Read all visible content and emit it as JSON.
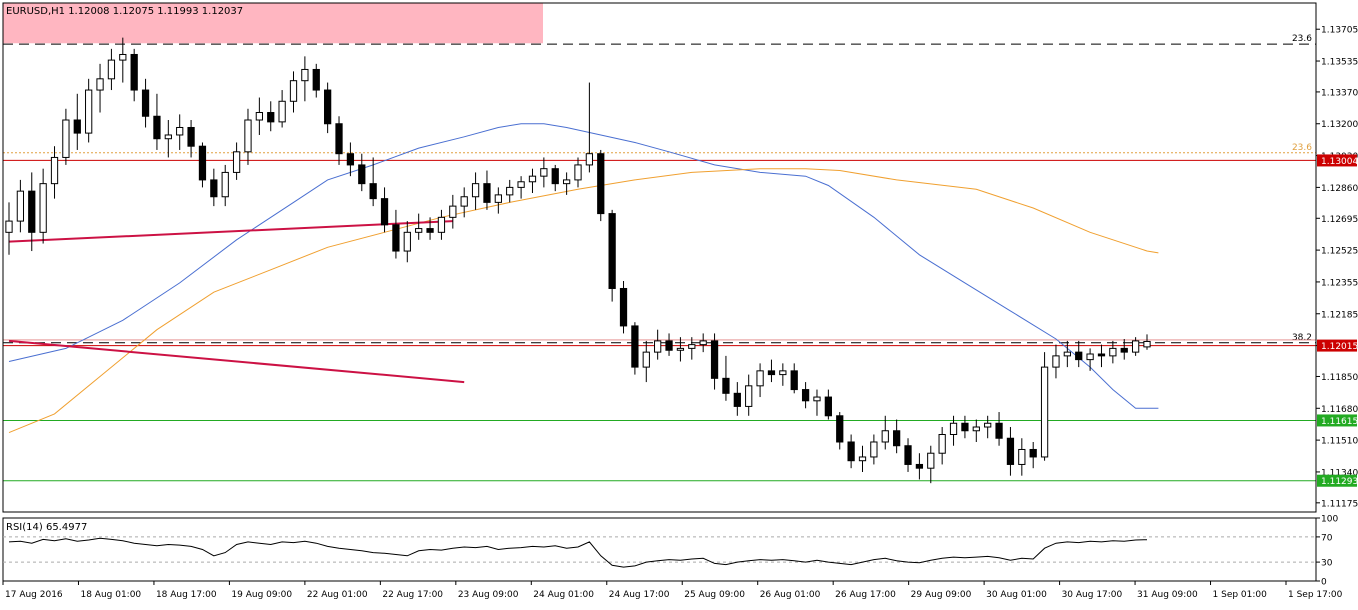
{
  "chart_data": {
    "type": "candlestick",
    "symbol_header": "EURUSD,H1  1.12008 1.12075 1.11993 1.12037",
    "timeframe": "H1",
    "ohlc_last": {
      "open": 1.12008,
      "high": 1.12075,
      "low": 1.11993,
      "close": 1.12037
    },
    "price_axis_ticks": [
      "1.13705",
      "1.13535",
      "1.13370",
      "1.13200",
      "1.13030",
      "1.12860",
      "1.12695",
      "1.12525",
      "1.12355",
      "1.12185",
      "1.12015",
      "1.11850",
      "1.11680",
      "1.11510",
      "1.11340",
      "1.11175"
    ],
    "price_range": [
      1.11126,
      1.13845
    ],
    "time_axis_labels": [
      "17 Aug 2016",
      "18 Aug 01:00",
      "18 Aug 17:00",
      "19 Aug 09:00",
      "22 Aug 01:00",
      "22 Aug 17:00",
      "23 Aug 09:00",
      "24 Aug 01:00",
      "24 Aug 17:00",
      "25 Aug 09:00",
      "26 Aug 01:00",
      "26 Aug 17:00",
      "29 Aug 09:00",
      "30 Aug 01:00",
      "30 Aug 17:00",
      "31 Aug 09:00",
      "1 Sep 01:00",
      "1 Sep 17:00"
    ],
    "horizontal_levels": [
      {
        "label": "1.13004",
        "price": 1.13004,
        "color": "#cc0000"
      },
      {
        "label": "1.12015",
        "price": 1.12015,
        "color": "#cc0000"
      },
      {
        "label": "1.11615",
        "price": 1.11615,
        "color": "#22aa22"
      },
      {
        "label": "1.11293",
        "price": 1.11293,
        "color": "#22aa22"
      }
    ],
    "fibo_levels": [
      {
        "label": "23.6",
        "price": 1.13625
      },
      {
        "label": "23.6",
        "price": 1.13045
      },
      {
        "label": "38.2",
        "price": 1.1203
      }
    ],
    "highlight_zone": {
      "price_top": 1.13845,
      "price_bottom": 1.1363,
      "color": "#ffb6c1"
    },
    "moving_averages": [
      {
        "color": "#4a6fd1",
        "points": [
          [
            0,
            1.1193
          ],
          [
            5,
            1.12
          ],
          [
            10,
            1.1215
          ],
          [
            15,
            1.1235
          ],
          [
            20,
            1.1258
          ],
          [
            25,
            1.1278
          ],
          [
            28,
            1.129
          ],
          [
            32,
            1.1298
          ],
          [
            36,
            1.1307
          ],
          [
            40,
            1.1313
          ],
          [
            43,
            1.1318
          ],
          [
            45,
            1.132
          ],
          [
            47,
            1.132
          ],
          [
            49,
            1.1318
          ],
          [
            52,
            1.1314
          ],
          [
            55,
            1.131
          ],
          [
            58,
            1.1305
          ],
          [
            62,
            1.1298
          ],
          [
            66,
            1.1294
          ],
          [
            70,
            1.1292
          ],
          [
            72,
            1.1287
          ],
          [
            76,
            1.127
          ],
          [
            80,
            1.125
          ],
          [
            84,
            1.1235
          ],
          [
            88,
            1.122
          ],
          [
            92,
            1.1205
          ],
          [
            95,
            1.119
          ],
          [
            97,
            1.1178
          ],
          [
            99,
            1.1168
          ],
          [
            101,
            1.1168
          ]
        ]
      },
      {
        "color": "#f0a030",
        "points": [
          [
            0,
            1.1155
          ],
          [
            4,
            1.1165
          ],
          [
            8,
            1.1185
          ],
          [
            13,
            1.121
          ],
          [
            18,
            1.123
          ],
          [
            23,
            1.1242
          ],
          [
            28,
            1.1254
          ],
          [
            33,
            1.1262
          ],
          [
            38,
            1.127
          ],
          [
            44,
            1.1278
          ],
          [
            50,
            1.1285
          ],
          [
            55,
            1.129
          ],
          [
            60,
            1.1294
          ],
          [
            66,
            1.1296
          ],
          [
            70,
            1.1296
          ],
          [
            73,
            1.1295
          ],
          [
            78,
            1.129
          ],
          [
            85,
            1.1285
          ],
          [
            90,
            1.1275
          ],
          [
            95,
            1.1262
          ],
          [
            100,
            1.1252
          ],
          [
            101,
            1.1251
          ]
        ]
      }
    ],
    "trendlines": [
      {
        "color": "#cc1144",
        "from": [
          0,
          1.1257
        ],
        "to": [
          39,
          1.1268
        ]
      },
      {
        "color": "#cc1144",
        "from": [
          0,
          1.1204
        ],
        "to": [
          40,
          1.1182
        ]
      }
    ],
    "candles": [
      [
        1.1262,
        1.1278,
        1.125,
        1.1268
      ],
      [
        1.1268,
        1.129,
        1.1262,
        1.1284
      ],
      [
        1.1284,
        1.1294,
        1.1252,
        1.1262
      ],
      [
        1.1262,
        1.1296,
        1.1256,
        1.1288
      ],
      [
        1.1288,
        1.1308,
        1.128,
        1.1302
      ],
      [
        1.1302,
        1.1328,
        1.1298,
        1.1322
      ],
      [
        1.1322,
        1.1336,
        1.1306,
        1.1315
      ],
      [
        1.1315,
        1.1344,
        1.131,
        1.1338
      ],
      [
        1.1338,
        1.1352,
        1.1326,
        1.1344
      ],
      [
        1.1344,
        1.136,
        1.1338,
        1.1354
      ],
      [
        1.1354,
        1.1366,
        1.1342,
        1.1357
      ],
      [
        1.1357,
        1.136,
        1.1332,
        1.1338
      ],
      [
        1.1338,
        1.1344,
        1.1318,
        1.1324
      ],
      [
        1.1324,
        1.1336,
        1.1306,
        1.1312
      ],
      [
        1.1312,
        1.1322,
        1.1302,
        1.1314
      ],
      [
        1.1314,
        1.1325,
        1.1306,
        1.1318
      ],
      [
        1.1318,
        1.1322,
        1.1302,
        1.1308
      ],
      [
        1.1308,
        1.131,
        1.1286,
        1.129
      ],
      [
        1.129,
        1.1296,
        1.1276,
        1.1281
      ],
      [
        1.1281,
        1.1298,
        1.1276,
        1.1294
      ],
      [
        1.1294,
        1.131,
        1.129,
        1.1305
      ],
      [
        1.1305,
        1.1328,
        1.1298,
        1.1322
      ],
      [
        1.1322,
        1.1334,
        1.1314,
        1.1326
      ],
      [
        1.1326,
        1.1332,
        1.1316,
        1.1321
      ],
      [
        1.1321,
        1.1338,
        1.1318,
        1.1332
      ],
      [
        1.1332,
        1.1348,
        1.1326,
        1.1343
      ],
      [
        1.1343,
        1.1356,
        1.1332,
        1.1349
      ],
      [
        1.1349,
        1.1352,
        1.1334,
        1.1338
      ],
      [
        1.1338,
        1.1342,
        1.1315,
        1.132
      ],
      [
        1.132,
        1.1324,
        1.1298,
        1.1304
      ],
      [
        1.1304,
        1.131,
        1.1292,
        1.1298
      ],
      [
        1.1298,
        1.1304,
        1.1284,
        1.1288
      ],
      [
        1.1288,
        1.1302,
        1.1276,
        1.128
      ],
      [
        1.128,
        1.1286,
        1.1262,
        1.1266
      ],
      [
        1.1266,
        1.1274,
        1.1248,
        1.1252
      ],
      [
        1.1252,
        1.1268,
        1.1246,
        1.1262
      ],
      [
        1.1262,
        1.1272,
        1.1258,
        1.1264
      ],
      [
        1.1264,
        1.127,
        1.1258,
        1.1262
      ],
      [
        1.1262,
        1.1274,
        1.1258,
        1.127
      ],
      [
        1.127,
        1.1282,
        1.1264,
        1.1276
      ],
      [
        1.1276,
        1.1286,
        1.127,
        1.1281
      ],
      [
        1.1281,
        1.1294,
        1.1274,
        1.1288
      ],
      [
        1.1288,
        1.1295,
        1.1274,
        1.1278
      ],
      [
        1.1278,
        1.1286,
        1.1272,
        1.1282
      ],
      [
        1.1282,
        1.129,
        1.1278,
        1.1286
      ],
      [
        1.1286,
        1.1292,
        1.128,
        1.1289
      ],
      [
        1.1289,
        1.1296,
        1.1283,
        1.1292
      ],
      [
        1.1292,
        1.1302,
        1.1286,
        1.1296
      ],
      [
        1.1296,
        1.1298,
        1.1284,
        1.1288
      ],
      [
        1.1288,
        1.1294,
        1.1282,
        1.129
      ],
      [
        1.129,
        1.1302,
        1.1286,
        1.1298
      ],
      [
        1.1298,
        1.1342,
        1.1294,
        1.1304
      ],
      [
        1.1304,
        1.1306,
        1.1268,
        1.1272
      ],
      [
        1.1272,
        1.1274,
        1.1225,
        1.1232
      ],
      [
        1.1232,
        1.1236,
        1.1208,
        1.1212
      ],
      [
        1.1212,
        1.1214,
        1.1186,
        1.119
      ],
      [
        1.119,
        1.1204,
        1.1182,
        1.1198
      ],
      [
        1.1198,
        1.121,
        1.1194,
        1.1204
      ],
      [
        1.1204,
        1.1208,
        1.1196,
        1.1199
      ],
      [
        1.1199,
        1.1206,
        1.1193,
        1.12
      ],
      [
        1.12,
        1.1206,
        1.1194,
        1.1202
      ],
      [
        1.1202,
        1.1208,
        1.1198,
        1.1204
      ],
      [
        1.1204,
        1.1208,
        1.1178,
        1.1184
      ],
      [
        1.1184,
        1.1196,
        1.1172,
        1.1176
      ],
      [
        1.1176,
        1.1182,
        1.1164,
        1.1169
      ],
      [
        1.1169,
        1.1186,
        1.1164,
        1.118
      ],
      [
        1.118,
        1.1192,
        1.1174,
        1.1188
      ],
      [
        1.1188,
        1.1194,
        1.1182,
        1.1186
      ],
      [
        1.1186,
        1.1192,
        1.118,
        1.1188
      ],
      [
        1.1188,
        1.1192,
        1.1176,
        1.1178
      ],
      [
        1.1178,
        1.1182,
        1.1168,
        1.1172
      ],
      [
        1.1172,
        1.1178,
        1.1164,
        1.1174
      ],
      [
        1.1174,
        1.1178,
        1.1162,
        1.1164
      ],
      [
        1.1164,
        1.1166,
        1.1146,
        1.115
      ],
      [
        1.115,
        1.1154,
        1.1136,
        1.114
      ],
      [
        1.114,
        1.1148,
        1.1134,
        1.1142
      ],
      [
        1.1142,
        1.1154,
        1.1138,
        1.115
      ],
      [
        1.115,
        1.1164,
        1.1146,
        1.1156
      ],
      [
        1.1156,
        1.1162,
        1.1144,
        1.1148
      ],
      [
        1.1148,
        1.1152,
        1.1134,
        1.1138
      ],
      [
        1.1138,
        1.1144,
        1.113,
        1.1136
      ],
      [
        1.1136,
        1.1148,
        1.1128,
        1.1144
      ],
      [
        1.1144,
        1.1158,
        1.1138,
        1.1154
      ],
      [
        1.1154,
        1.1164,
        1.1148,
        1.116
      ],
      [
        1.116,
        1.1164,
        1.1152,
        1.1156
      ],
      [
        1.1156,
        1.1162,
        1.115,
        1.1158
      ],
      [
        1.1158,
        1.1164,
        1.1152,
        1.116
      ],
      [
        1.116,
        1.1166,
        1.1148,
        1.1152
      ],
      [
        1.1152,
        1.1158,
        1.1132,
        1.1138
      ],
      [
        1.1138,
        1.1152,
        1.1132,
        1.1146
      ],
      [
        1.1146,
        1.115,
        1.1136,
        1.1142
      ],
      [
        1.1142,
        1.1198,
        1.114,
        1.119
      ],
      [
        1.119,
        1.1202,
        1.1184,
        1.1196
      ],
      [
        1.1196,
        1.1204,
        1.119,
        1.1198
      ],
      [
        1.1198,
        1.1204,
        1.119,
        1.1194
      ],
      [
        1.1194,
        1.12,
        1.1188,
        1.1197
      ],
      [
        1.1197,
        1.1202,
        1.119,
        1.1196
      ],
      [
        1.1196,
        1.1204,
        1.1192,
        1.12
      ],
      [
        1.12,
        1.1205,
        1.1194,
        1.1198
      ],
      [
        1.1198,
        1.1206,
        1.1196,
        1.1204
      ],
      [
        1.12008,
        1.12075,
        1.11993,
        1.12037
      ]
    ],
    "rsi": {
      "label": "RSI(14) 65.4977",
      "period": 14,
      "last": 65.4977,
      "levels": [
        30,
        70
      ],
      "ticks": [
        "100",
        "70",
        "30",
        "0"
      ],
      "values": [
        62,
        63,
        60,
        66,
        64,
        67,
        63,
        65,
        68,
        66,
        64,
        60,
        58,
        56,
        58,
        57,
        55,
        50,
        40,
        45,
        58,
        62,
        60,
        58,
        62,
        61,
        63,
        60,
        55,
        52,
        50,
        48,
        45,
        44,
        42,
        40,
        48,
        50,
        49,
        52,
        54,
        53,
        55,
        50,
        52,
        53,
        55,
        54,
        56,
        52,
        54,
        62,
        40,
        25,
        22,
        24,
        30,
        32,
        34,
        33,
        35,
        36,
        28,
        26,
        30,
        32,
        34,
        33,
        34,
        32,
        30,
        33,
        30,
        28,
        26,
        30,
        34,
        36,
        32,
        30,
        29,
        33,
        36,
        38,
        37,
        38,
        39,
        37,
        33,
        36,
        35,
        52,
        60,
        62,
        61,
        63,
        62,
        64,
        63,
        65,
        65.4977
      ]
    }
  }
}
